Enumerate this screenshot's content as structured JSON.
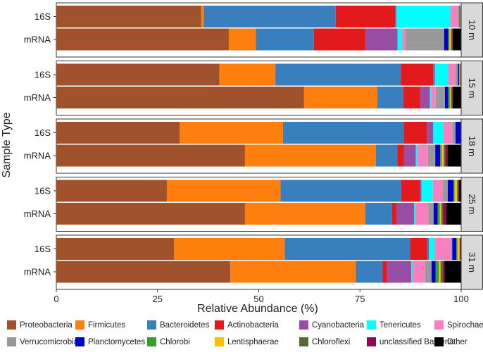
{
  "chart_data": {
    "type": "bar",
    "orientation": "horizontal",
    "stacked": true,
    "xlabel": "Relative Abundance (%)",
    "ylabel": "Sample Type",
    "xlim": [
      0,
      100
    ],
    "xticks": [
      "0",
      "25",
      "50",
      "75",
      "100"
    ],
    "xtick_values": [
      0,
      25,
      50,
      75,
      100
    ],
    "row_labels": [
      "16S",
      "mRNA"
    ],
    "categories": [
      "Proteobacteria",
      "Firmicutes",
      "Bacteroidetes",
      "Actinobacteria",
      "Cyanobacteria",
      "Tenericutes",
      "Spirochaetes",
      "Verrucomicrobia",
      "Planctomycetes",
      "Chlorobi",
      "Lentisphaerae",
      "Chloroflexi",
      "unclassified Bacteria",
      "Other"
    ],
    "colors": [
      "#a0522d",
      "#ff7f0e",
      "#3a7fbd",
      "#e31a1c",
      "#984ea3",
      "#00ffff",
      "#f781bf",
      "#999999",
      "#0000cd",
      "#33a02c",
      "#ffc000",
      "#556b2f",
      "#8b0a50",
      "#000000"
    ],
    "legend_position": "bottom",
    "facets": [
      {
        "label": "10 m",
        "bars": [
          {
            "sample": "16S",
            "values": [
              35.8,
              0.6,
              32.6,
              14.7,
              0.3,
              13.3,
              1.8,
              0.4,
              0.1,
              0.1,
              0.1,
              0.1,
              0.1,
              0.0
            ]
          },
          {
            "sample": "mRNA",
            "values": [
              42.6,
              6.7,
              14.3,
              12.8,
              7.9,
              1.1,
              0.8,
              9.6,
              1.0,
              0.3,
              0.4,
              0.3,
              0.2,
              2.0
            ]
          }
        ]
      },
      {
        "label": "15 m",
        "bars": [
          {
            "sample": "16S",
            "values": [
              40.3,
              13.8,
              31.0,
              8.0,
              0.4,
              3.3,
              1.8,
              0.6,
              0.3,
              0.1,
              0.1,
              0.1,
              0.1,
              0.1
            ]
          },
          {
            "sample": "mRNA",
            "values": [
              61.2,
              18.1,
              6.4,
              4.2,
              2.4,
              0.3,
              1.1,
              2.3,
              0.8,
              0.4,
              0.3,
              0.3,
              0.2,
              2.0
            ]
          }
        ]
      },
      {
        "label": "18 m",
        "bars": [
          {
            "sample": "16S",
            "values": [
              30.5,
              25.5,
              29.8,
              5.8,
              1.5,
              2.5,
              2.2,
              0.8,
              1.3,
              0.2,
              0.8,
              0.2,
              0.2,
              0.0
            ]
          },
          {
            "sample": "mRNA",
            "values": [
              46.6,
              32.3,
              5.3,
              1.7,
              2.9,
              0.4,
              2.6,
              1.8,
              1.2,
              0.4,
              0.5,
              0.4,
              0.6,
              3.3
            ]
          }
        ]
      },
      {
        "label": "25 m",
        "bars": [
          {
            "sample": "16S",
            "values": [
              27.3,
              28.1,
              29.8,
              4.6,
              0.4,
              2.8,
              2.5,
              1.2,
              1.4,
              0.3,
              0.6,
              0.3,
              0.2,
              0.5
            ]
          },
          {
            "sample": "mRNA",
            "values": [
              46.6,
              29.7,
              6.6,
              1.1,
              4.4,
              0.3,
              3.2,
              1.3,
              1.0,
              0.5,
              0.4,
              0.4,
              0.8,
              3.7
            ]
          }
        ]
      },
      {
        "label": "31 m",
        "bars": [
          {
            "sample": "16S",
            "values": [
              29.1,
              27.3,
              31.0,
              4.2,
              0.4,
              1.4,
              4.1,
              0.3,
              1.0,
              0.3,
              0.5,
              0.1,
              0.3,
              0.0
            ]
          },
          {
            "sample": "mRNA",
            "values": [
              43.0,
              31.0,
              6.6,
              1.1,
              6.0,
              0.3,
              3.1,
              1.6,
              1.0,
              0.8,
              0.4,
              0.6,
              0.4,
              4.1
            ]
          }
        ]
      }
    ]
  }
}
